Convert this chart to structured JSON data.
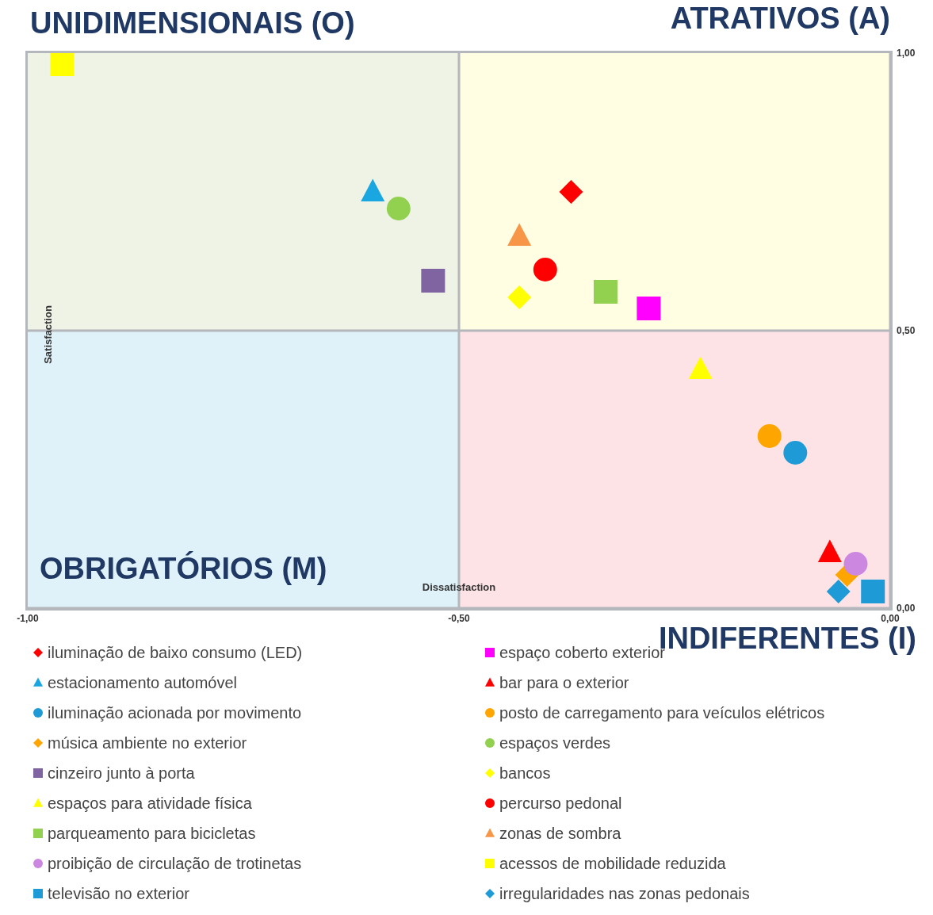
{
  "chart_data": {
    "type": "scatter",
    "xlabel": "Dissatisfaction",
    "ylabel": "Satisfaction",
    "annotations": [
      "UNIDIMENSIONAIS (O)",
      "ATRATIVOS (A)",
      "OBRIGATÓRIOS (M)",
      "INDIFERENTES (I)"
    ],
    "xlim": [
      -1,
      0
    ],
    "ylim": [
      0,
      1
    ],
    "xticks": [
      {
        "value": -1,
        "label": "-1,00"
      },
      {
        "value": -0.5,
        "label": "-0,50"
      },
      {
        "value": 0,
        "label": "0,00"
      }
    ],
    "yticks": [
      {
        "value": 0,
        "label": "0,00"
      },
      {
        "value": 0.5,
        "label": "0,50"
      },
      {
        "value": 1,
        "label": "1,00"
      }
    ],
    "grid": false,
    "legend": "bottom",
    "ref_lines": [
      {
        "axis": "x",
        "value": -0.5,
        "color": "#b4b8bc"
      },
      {
        "axis": "y",
        "value": 0.5,
        "color": "#b4b8bc"
      }
    ],
    "series": [
      {
        "name": "iluminação de baixo consumo (LED)",
        "color": "#ff0000",
        "marker": "diamond",
        "x": [
          -0.37
        ],
        "values": [
          0.75
        ]
      },
      {
        "name": "estacionamento automóvel",
        "color": "#1aa6e0",
        "marker": "triangle",
        "x": [
          -0.6
        ],
        "values": [
          0.75
        ]
      },
      {
        "name": "iluminação acionada por movimento",
        "color": "#1e9ad6",
        "marker": "circle",
        "x": [
          -0.11
        ],
        "values": [
          0.28
        ]
      },
      {
        "name": "música ambiente no exterior",
        "color": "#ffa500",
        "marker": "diamond",
        "x": [
          -0.05
        ],
        "values": [
          0.06
        ]
      },
      {
        "name": "cinzeiro junto à porta",
        "color": "#8064a2",
        "marker": "square",
        "x": [
          -0.53
        ],
        "values": [
          0.59
        ]
      },
      {
        "name": "espaços para atividade física",
        "color": "#ffff00",
        "marker": "triangle",
        "x": [
          -0.22
        ],
        "values": [
          0.43
        ]
      },
      {
        "name": "parqueamento para bicicletas",
        "color": "#92d050",
        "marker": "square",
        "x": [
          -0.33
        ],
        "values": [
          0.57
        ]
      },
      {
        "name": "proibição de circulação de trotinetas",
        "color": "#cc88e0",
        "marker": "circle",
        "x": [
          -0.04
        ],
        "values": [
          0.08
        ]
      },
      {
        "name": "televisão no exterior",
        "color": "#1e9ad6",
        "marker": "square",
        "x": [
          -0.02
        ],
        "values": [
          0.03
        ]
      },
      {
        "name": "espaço coberto exterior",
        "color": "#ff00ff",
        "marker": "square",
        "x": [
          -0.28
        ],
        "values": [
          0.54
        ]
      },
      {
        "name": "bar para o exterior",
        "color": "#ff0000",
        "marker": "triangle",
        "x": [
          -0.07
        ],
        "values": [
          0.1
        ]
      },
      {
        "name": "posto de carregamento para veículos elétricos",
        "color": "#ffa500",
        "marker": "circle",
        "x": [
          -0.14
        ],
        "values": [
          0.31
        ]
      },
      {
        "name": "espaços verdes",
        "color": "#92d050",
        "marker": "circle",
        "x": [
          -0.57
        ],
        "values": [
          0.72
        ]
      },
      {
        "name": "bancos",
        "color": "#ffff00",
        "marker": "diamond",
        "x": [
          -0.43
        ],
        "values": [
          0.56
        ]
      },
      {
        "name": "percurso pedonal",
        "color": "#ff0000",
        "marker": "circle",
        "x": [
          -0.4
        ],
        "values": [
          0.61
        ]
      },
      {
        "name": "zonas de sombra",
        "color": "#f79646",
        "marker": "triangle",
        "x": [
          -0.43
        ],
        "values": [
          0.67
        ]
      },
      {
        "name": "acessos de mobilidade reduzida",
        "color": "#ffff00",
        "marker": "square",
        "x": [
          -0.96
        ],
        "values": [
          0.98
        ]
      },
      {
        "name": "irregularidades nas zonas pedonais",
        "color": "#1e9ad6",
        "marker": "diamond",
        "x": [
          -0.06
        ],
        "values": [
          0.03
        ]
      }
    ]
  }
}
